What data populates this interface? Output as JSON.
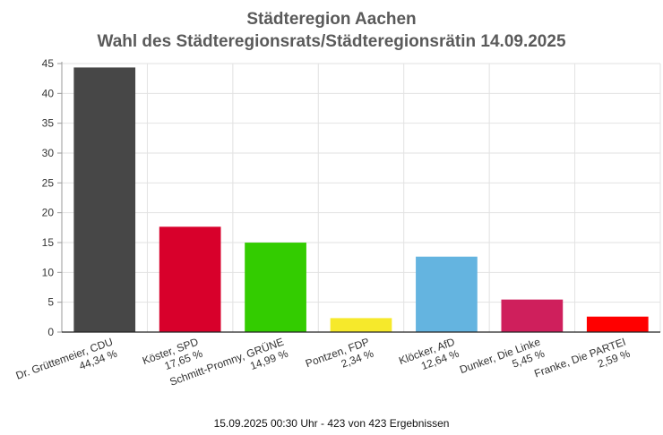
{
  "chart_data": {
    "type": "bar",
    "title": "Städteregion Aachen",
    "subtitle": "Wahl des Städteregionsrats/Städteregionsrätin 14.09.2025",
    "categories": [
      {
        "name": "Dr. Grüttemeier, CDU",
        "pct": "44,34 %"
      },
      {
        "name": "Köster, SPD",
        "pct": "17,65 %"
      },
      {
        "name": "Schmitt-Promny, GRÜNE",
        "pct": "14,99 %"
      },
      {
        "name": "Pontzen, FDP",
        "pct": "2,34 %"
      },
      {
        "name": "Klöcker, AfD",
        "pct": "12,64 %"
      },
      {
        "name": "Dunker, Die Linke",
        "pct": "5,45 %"
      },
      {
        "name": "Franke, Die PARTEI",
        "pct": "2,59 %"
      }
    ],
    "values": [
      44.34,
      17.65,
      14.99,
      2.34,
      12.64,
      5.45,
      2.59
    ],
    "colors": [
      "#474747",
      "#d8002b",
      "#33cc00",
      "#f6e92b",
      "#64b4e0",
      "#cf1f5c",
      "#ff0000"
    ],
    "ylim": [
      0,
      45
    ],
    "yticks": [
      0,
      5,
      10,
      15,
      20,
      25,
      30,
      35,
      40,
      45
    ],
    "grid": true,
    "xlabel": "",
    "ylabel": ""
  },
  "footer": "15.09.2025 00:30 Uhr - 423 von 423 Ergebnissen"
}
